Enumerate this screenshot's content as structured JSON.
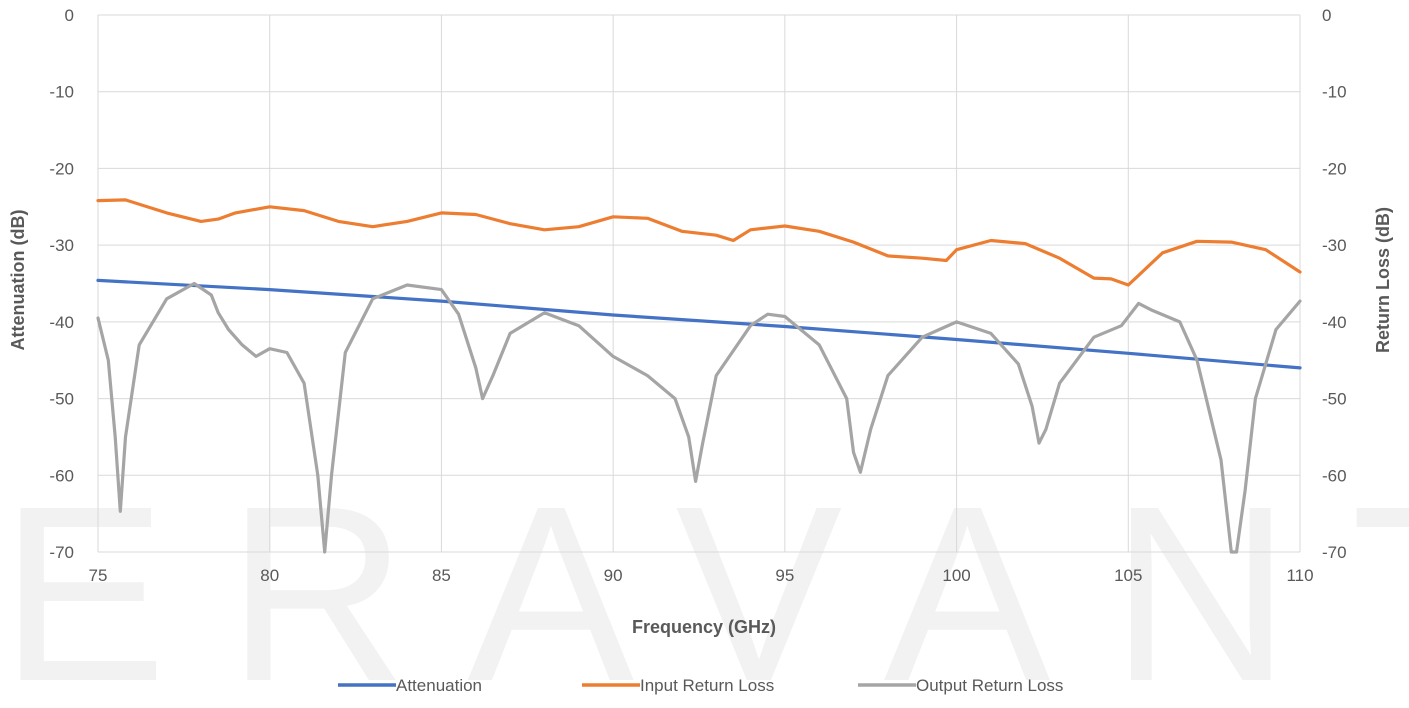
{
  "watermark": "ERAVANT",
  "chart_data": {
    "type": "line",
    "title": "",
    "xlabel": "Frequency (GHz)",
    "ylabel_left": "Attenuation (dB)",
    "ylabel_right": "Return Loss (dB)",
    "xlim": [
      75,
      110
    ],
    "ylim_left": [
      -70,
      0
    ],
    "ylim_right": [
      -70,
      0
    ],
    "x_ticks": [
      75,
      80,
      85,
      90,
      95,
      100,
      105,
      110
    ],
    "y_ticks": [
      0,
      -10,
      -20,
      -30,
      -40,
      -50,
      -60,
      -70
    ],
    "grid": true,
    "legend_position": "bottom",
    "series": [
      {
        "name": "Attenuation",
        "color": "#4472c4",
        "axis": "left",
        "x": [
          75,
          80,
          85,
          90,
          95,
          100,
          105,
          110
        ],
        "y": [
          -34.6,
          -35.8,
          -37.3,
          -39.1,
          -40.6,
          -42.3,
          -44.1,
          -46.0
        ]
      },
      {
        "name": "Input Return Loss",
        "color": "#ed7d31",
        "axis": "right",
        "x": [
          75,
          75.8,
          77,
          78,
          78.5,
          79,
          80,
          81,
          82,
          83,
          84,
          85,
          86,
          87,
          88,
          89,
          90,
          91,
          92,
          93,
          93.5,
          94,
          95,
          96,
          97,
          98,
          99,
          99.7,
          100,
          101,
          102,
          103,
          104,
          104.5,
          105,
          106,
          107,
          108,
          109,
          110
        ],
        "y": [
          -24.2,
          -24.1,
          -25.8,
          -26.9,
          -26.6,
          -25.8,
          -25.0,
          -25.5,
          -26.9,
          -27.6,
          -26.9,
          -25.8,
          -26.0,
          -27.2,
          -28.0,
          -27.6,
          -26.3,
          -26.5,
          -28.2,
          -28.7,
          -29.4,
          -28.0,
          -27.5,
          -28.2,
          -29.6,
          -31.4,
          -31.7,
          -32.0,
          -30.6,
          -29.4,
          -29.8,
          -31.7,
          -34.3,
          -34.4,
          -35.2,
          -31.0,
          -29.5,
          -29.6,
          -30.6,
          -33.5
        ]
      },
      {
        "name": "Output Return Loss",
        "color": "#a5a5a5",
        "axis": "right",
        "x": [
          75,
          75.3,
          75.5,
          75.65,
          75.8,
          76.2,
          77,
          77.8,
          78.3,
          78.5,
          78.8,
          79.2,
          79.6,
          80,
          80.5,
          81,
          81.4,
          81.6,
          81.8,
          82.2,
          83,
          84,
          85,
          85.5,
          86,
          86.2,
          86.5,
          87,
          88,
          89,
          90,
          91,
          91.8,
          92.2,
          92.4,
          92.6,
          93,
          94,
          94.5,
          95,
          96,
          96.8,
          97,
          97.2,
          97.5,
          98,
          99,
          99.5,
          100,
          101,
          101.8,
          102.2,
          102.4,
          102.6,
          103,
          104,
          104.8,
          105.3,
          105.7,
          106.5,
          107,
          107.7,
          108,
          108.15,
          108.4,
          108.7,
          109.3,
          110
        ],
        "y": [
          -39.5,
          -45,
          -55,
          -64.7,
          -55,
          -43,
          -37,
          -35.0,
          -36.5,
          -38.8,
          -41,
          -43,
          -44.5,
          -43.5,
          -44,
          -48,
          -60,
          -70,
          -60,
          -44,
          -37,
          -35.2,
          -35.8,
          -39,
          -46,
          -50.0,
          -47,
          -41.5,
          -38.8,
          -40.5,
          -44.5,
          -47,
          -50,
          -55,
          -60.8,
          -56,
          -47,
          -40.5,
          -39.0,
          -39.3,
          -43,
          -50,
          -57,
          -59.6,
          -54,
          -47,
          -42,
          -41,
          -40.0,
          -41.5,
          -45.5,
          -51,
          -55.8,
          -54,
          -48,
          -42,
          -40.5,
          -37.6,
          -38.5,
          -40,
          -45,
          -58,
          -70,
          -70,
          -62,
          -50,
          -41,
          -37.3
        ]
      }
    ]
  }
}
